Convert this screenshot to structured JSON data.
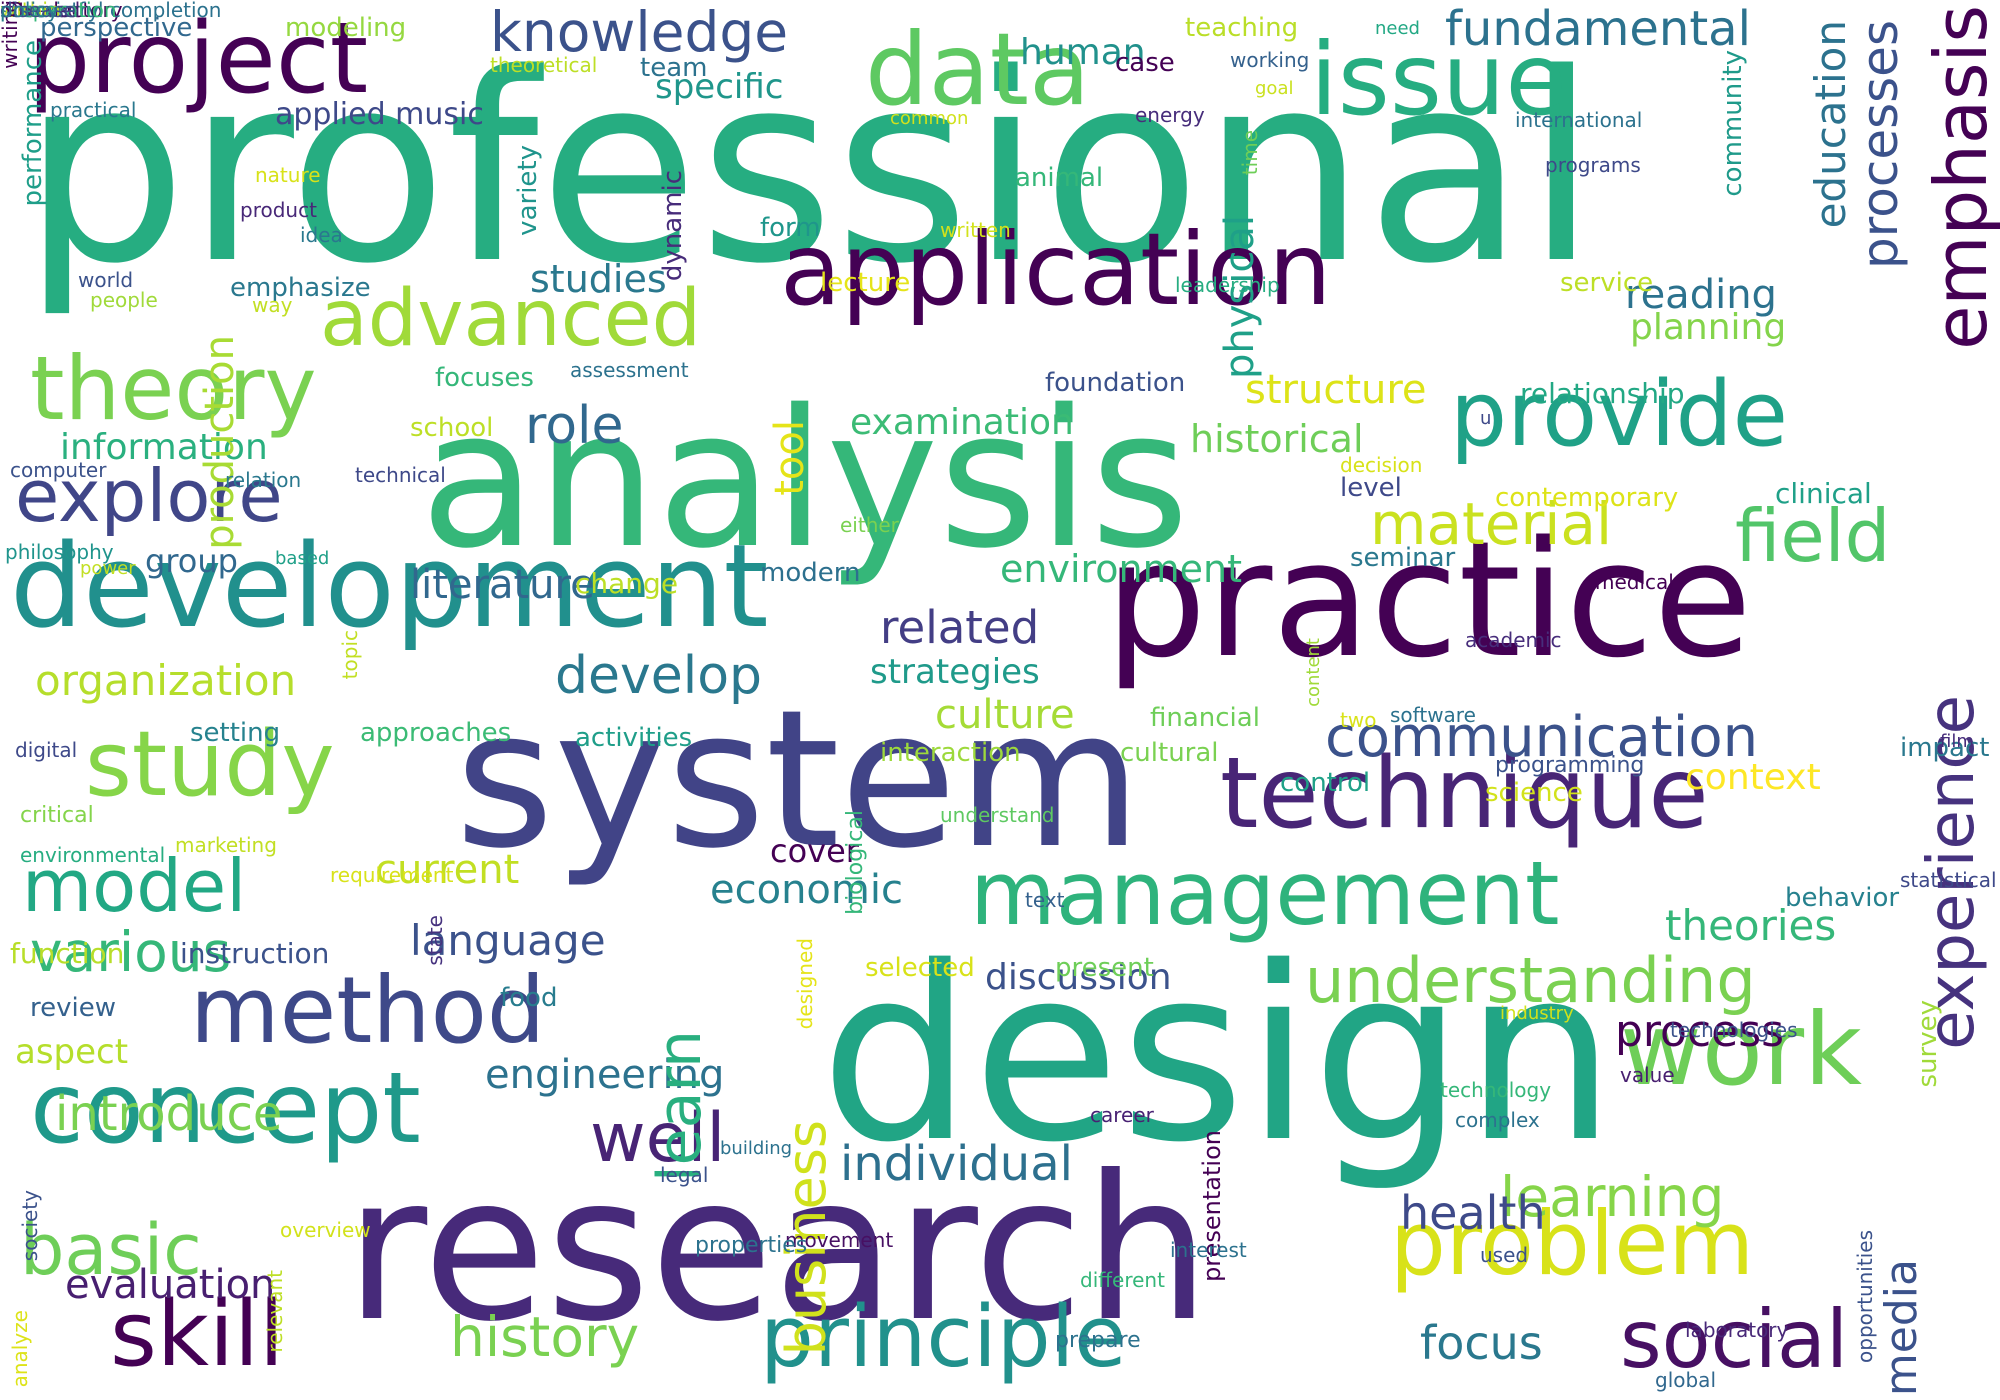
{
  "words": [
    {
      "text": "professional",
      "color": "#26ad81",
      "dir": "h"
    },
    {
      "text": "analysis",
      "color": "#35b779",
      "dir": "h"
    },
    {
      "text": "system",
      "color": "#414487",
      "dir": "h"
    },
    {
      "text": "design",
      "color": "#21a585",
      "dir": "h"
    },
    {
      "text": "research",
      "color": "#472a7a",
      "dir": "h"
    },
    {
      "text": "practice",
      "color": "#440154",
      "dir": "h"
    },
    {
      "text": "application",
      "color": "#440154",
      "dir": "h"
    },
    {
      "text": "development",
      "color": "#21908d",
      "dir": "h"
    },
    {
      "text": "project",
      "color": "#440154",
      "dir": "h"
    },
    {
      "text": "issue",
      "color": "#26ad81",
      "dir": "h"
    },
    {
      "text": "data",
      "color": "#5ec962",
      "dir": "h"
    },
    {
      "text": "knowledge",
      "color": "#3b528b",
      "dir": "h"
    },
    {
      "text": "fundamental",
      "color": "#2c728e",
      "dir": "h"
    },
    {
      "text": "emphasis",
      "color": "#440154",
      "dir": "v"
    },
    {
      "text": "theory",
      "color": "#7ad151",
      "dir": "h"
    },
    {
      "text": "advanced",
      "color": "#a0da39",
      "dir": "h"
    },
    {
      "text": "provide",
      "color": "#1fa187",
      "dir": "h"
    },
    {
      "text": "explore",
      "color": "#404688",
      "dir": "h"
    },
    {
      "text": "technique",
      "color": "#482576",
      "dir": "h"
    },
    {
      "text": "management",
      "color": "#2eb37c",
      "dir": "h"
    },
    {
      "text": "study",
      "color": "#86d549",
      "dir": "h"
    },
    {
      "text": "model",
      "color": "#22a884",
      "dir": "h"
    },
    {
      "text": "method",
      "color": "#3e4989",
      "dir": "h"
    },
    {
      "text": "concept",
      "color": "#1f998a",
      "dir": "h"
    },
    {
      "text": "problem",
      "color": "#d8e219",
      "dir": "h"
    },
    {
      "text": "work",
      "color": "#6ece58",
      "dir": "h"
    },
    {
      "text": "experience",
      "color": "#46327e",
      "dir": "v"
    },
    {
      "text": "skill",
      "color": "#440154",
      "dir": "h"
    },
    {
      "text": "principle",
      "color": "#21918c",
      "dir": "h"
    },
    {
      "text": "social",
      "color": "#471063",
      "dir": "h"
    },
    {
      "text": "basic",
      "color": "#6ece58",
      "dir": "h"
    },
    {
      "text": "history",
      "color": "#7ad151",
      "dir": "h"
    },
    {
      "text": "communication",
      "color": "#3b528b",
      "dir": "h"
    },
    {
      "text": "understanding",
      "color": "#7ad151",
      "dir": "h"
    },
    {
      "text": "field",
      "color": "#52c569",
      "dir": "h"
    },
    {
      "text": "material",
      "color": "#cae11f",
      "dir": "h"
    },
    {
      "text": "processes",
      "color": "#3b528b",
      "dir": "v"
    },
    {
      "text": "education",
      "color": "#2c728e",
      "dir": "v"
    },
    {
      "text": "various",
      "color": "#35b779",
      "dir": "h"
    },
    {
      "text": "organization",
      "color": "#b5de2b",
      "dir": "h"
    },
    {
      "text": "introduce",
      "color": "#7ad151",
      "dir": "h"
    },
    {
      "text": "learning",
      "color": "#86d549",
      "dir": "h"
    },
    {
      "text": "develop",
      "color": "#2a788e",
      "dir": "h"
    },
    {
      "text": "literature",
      "color": "#31688e",
      "dir": "h"
    },
    {
      "text": "role",
      "color": "#31688e",
      "dir": "h"
    },
    {
      "text": "information",
      "color": "#2ab07f",
      "dir": "h"
    },
    {
      "text": "structure",
      "color": "#dde318",
      "dir": "h"
    },
    {
      "text": "historical",
      "color": "#6ece58",
      "dir": "h"
    },
    {
      "text": "environment",
      "color": "#35b779",
      "dir": "h"
    },
    {
      "text": "examination",
      "color": "#3bbb75",
      "dir": "h"
    },
    {
      "text": "related",
      "color": "#433e85",
      "dir": "h"
    },
    {
      "text": "strategies",
      "color": "#1f9a8a",
      "dir": "h"
    },
    {
      "text": "culture",
      "color": "#a5db36",
      "dir": "h"
    },
    {
      "text": "economic",
      "color": "#26818e",
      "dir": "h"
    },
    {
      "text": "language",
      "color": "#3b528b",
      "dir": "h"
    },
    {
      "text": "current",
      "color": "#c2df23",
      "dir": "h"
    },
    {
      "text": "discussion",
      "color": "#3b528b",
      "dir": "h"
    },
    {
      "text": "engineering",
      "color": "#2c728e",
      "dir": "h"
    },
    {
      "text": "individual",
      "color": "#2d708e",
      "dir": "h"
    },
    {
      "text": "well",
      "color": "#482475",
      "dir": "h"
    },
    {
      "text": "health",
      "color": "#3e4a89",
      "dir": "h"
    },
    {
      "text": "focus",
      "color": "#2a788e",
      "dir": "h"
    },
    {
      "text": "evaluation",
      "color": "#481f70",
      "dir": "h"
    },
    {
      "text": "learn",
      "color": "#29af7f",
      "dir": "v"
    },
    {
      "text": "business",
      "color": "#d0e11c",
      "dir": "v"
    },
    {
      "text": "process",
      "color": "#440154",
      "dir": "h"
    },
    {
      "text": "theories",
      "color": "#35b779",
      "dir": "h"
    },
    {
      "text": "media",
      "color": "#3b528b",
      "dir": "v"
    },
    {
      "text": "reading",
      "color": "#2c728e",
      "dir": "h"
    },
    {
      "text": "planning",
      "color": "#84d44b",
      "dir": "h"
    },
    {
      "text": "studies",
      "color": "#2a788e",
      "dir": "h"
    },
    {
      "text": "specific",
      "color": "#1f968b",
      "dir": "h"
    },
    {
      "text": "human",
      "color": "#21918c",
      "dir": "h"
    },
    {
      "text": "physical",
      "color": "#1fa088",
      "dir": "v"
    },
    {
      "text": "production",
      "color": "#a8db34",
      "dir": "v"
    },
    {
      "text": "applied music",
      "color": "#3e4989",
      "dir": "h"
    },
    {
      "text": "perspective",
      "color": "#31688e",
      "dir": "h"
    },
    {
      "text": "modeling",
      "color": "#95d840",
      "dir": "h"
    },
    {
      "text": "teaching",
      "color": "#bade28",
      "dir": "h"
    },
    {
      "text": "context",
      "color": "#fde725",
      "dir": "h"
    },
    {
      "text": "tool",
      "color": "#e5e419",
      "dir": "v"
    },
    {
      "text": "group",
      "color": "#31688e",
      "dir": "h"
    },
    {
      "text": "activities",
      "color": "#1f9e89",
      "dir": "h"
    },
    {
      "text": "setting",
      "color": "#26828e",
      "dir": "h"
    },
    {
      "text": "approaches",
      "color": "#3bbb75",
      "dir": "h"
    },
    {
      "text": "interaction",
      "color": "#9dd93b",
      "dir": "h"
    },
    {
      "text": "cultural",
      "color": "#7ad151",
      "dir": "h"
    },
    {
      "text": "financial",
      "color": "#6ece58",
      "dir": "h"
    },
    {
      "text": "control",
      "color": "#1fa187",
      "dir": "h"
    },
    {
      "text": "science",
      "color": "#d2e21b",
      "dir": "h"
    },
    {
      "text": "cover",
      "color": "#440154",
      "dir": "h"
    },
    {
      "text": "instruction",
      "color": "#3b528b",
      "dir": "h"
    },
    {
      "text": "function",
      "color": "#b8de29",
      "dir": "h"
    },
    {
      "text": "aspect",
      "color": "#b5de2b",
      "dir": "h"
    },
    {
      "text": "review",
      "color": "#34618d",
      "dir": "h"
    },
    {
      "text": "food",
      "color": "#287c8e",
      "dir": "h"
    },
    {
      "text": "selected",
      "color": "#d8e219",
      "dir": "h"
    },
    {
      "text": "present",
      "color": "#6ece58",
      "dir": "h"
    },
    {
      "text": "survey",
      "color": "#a0da39",
      "dir": "v"
    },
    {
      "text": "behavior",
      "color": "#26818e",
      "dir": "h"
    },
    {
      "text": "impact",
      "color": "#2a788e",
      "dir": "h"
    },
    {
      "text": "clinical",
      "color": "#1fa088",
      "dir": "h"
    },
    {
      "text": "contemporary",
      "color": "#dde318",
      "dir": "h"
    },
    {
      "text": "level",
      "color": "#3e4989",
      "dir": "h"
    },
    {
      "text": "seminar",
      "color": "#2a788e",
      "dir": "h"
    },
    {
      "text": "modern",
      "color": "#2d708e",
      "dir": "h"
    },
    {
      "text": "foundation",
      "color": "#3b528b",
      "dir": "h"
    },
    {
      "text": "relationship",
      "color": "#22a884",
      "dir": "h"
    },
    {
      "text": "focuses",
      "color": "#35b779",
      "dir": "h"
    },
    {
      "text": "school",
      "color": "#bddf26",
      "dir": "h"
    },
    {
      "text": "emphasize",
      "color": "#2a788e",
      "dir": "h"
    },
    {
      "text": "variety",
      "color": "#1f948c",
      "dir": "v"
    },
    {
      "text": "dynamic",
      "color": "#472c7a",
      "dir": "v"
    },
    {
      "text": "form",
      "color": "#1f968b",
      "dir": "h"
    },
    {
      "text": "animal",
      "color": "#35b779",
      "dir": "h"
    },
    {
      "text": "case",
      "color": "#440154",
      "dir": "h"
    },
    {
      "text": "team",
      "color": "#2c728e",
      "dir": "h"
    },
    {
      "text": "community",
      "color": "#1f9a8a",
      "dir": "v"
    },
    {
      "text": "performance",
      "color": "#1f9e89",
      "dir": "v"
    },
    {
      "text": "lecture",
      "color": "#e5e419",
      "dir": "h"
    },
    {
      "text": "service",
      "color": "#bddf26",
      "dir": "h"
    },
    {
      "text": "written",
      "color": "#d2e21b",
      "dir": "h"
    },
    {
      "text": "programs",
      "color": "#3e4989",
      "dir": "h"
    },
    {
      "text": "international",
      "color": "#2c728e",
      "dir": "h"
    },
    {
      "text": "energy",
      "color": "#472d7b",
      "dir": "h"
    },
    {
      "text": "common",
      "color": "#d0e11c",
      "dir": "h"
    },
    {
      "text": "goal",
      "color": "#cae11f",
      "dir": "h"
    },
    {
      "text": "working",
      "color": "#34618d",
      "dir": "h"
    },
    {
      "text": "need",
      "color": "#22a884",
      "dir": "h"
    },
    {
      "text": "theoretical",
      "color": "#bddf26",
      "dir": "h"
    },
    {
      "text": "practical",
      "color": "#2a788e",
      "dir": "h"
    },
    {
      "text": "nature",
      "color": "#d8e219",
      "dir": "h"
    },
    {
      "text": "product",
      "color": "#482878",
      "dir": "h"
    },
    {
      "text": "idea",
      "color": "#2a788e",
      "dir": "h"
    },
    {
      "text": "world",
      "color": "#3b528b",
      "dir": "h"
    },
    {
      "text": "people",
      "color": "#a0da39",
      "dir": "h"
    },
    {
      "text": "way",
      "color": "#c2df23",
      "dir": "h"
    },
    {
      "text": "leadership",
      "color": "#27ad81",
      "dir": "h"
    },
    {
      "text": "time",
      "color": "#6ece58",
      "dir": "v"
    },
    {
      "text": "assessment",
      "color": "#2c728e",
      "dir": "h"
    },
    {
      "text": "computer",
      "color": "#3b528b",
      "dir": "h"
    },
    {
      "text": "relation",
      "color": "#2a788e",
      "dir": "h"
    },
    {
      "text": "technical",
      "color": "#3e4989",
      "dir": "h"
    },
    {
      "text": "philosophy",
      "color": "#1f948c",
      "dir": "h"
    },
    {
      "text": "power",
      "color": "#c2df23",
      "dir": "h"
    },
    {
      "text": "based",
      "color": "#1fa088",
      "dir": "h"
    },
    {
      "text": "either",
      "color": "#7ad151",
      "dir": "h"
    },
    {
      "text": "decision",
      "color": "#d8e219",
      "dir": "h"
    },
    {
      "text": "u",
      "color": "#3e4989",
      "dir": "h"
    },
    {
      "text": "medical",
      "color": "#440154",
      "dir": "h"
    },
    {
      "text": "academic",
      "color": "#472d7b",
      "dir": "h"
    },
    {
      "text": "content",
      "color": "#a0da39",
      "dir": "v"
    },
    {
      "text": "topic",
      "color": "#c2df23",
      "dir": "v"
    },
    {
      "text": "software",
      "color": "#2c728e",
      "dir": "h"
    },
    {
      "text": "two",
      "color": "#d8e219",
      "dir": "h"
    },
    {
      "text": "film",
      "color": "#472d7b",
      "dir": "h"
    },
    {
      "text": "programming",
      "color": "#3b528b",
      "dir": "h"
    },
    {
      "text": "digital",
      "color": "#3e4989",
      "dir": "h"
    },
    {
      "text": "critical",
      "color": "#84d44b",
      "dir": "h"
    },
    {
      "text": "environmental",
      "color": "#27ad81",
      "dir": "h"
    },
    {
      "text": "marketing",
      "color": "#c2df23",
      "dir": "h"
    },
    {
      "text": "requirement",
      "color": "#d8e219",
      "dir": "h"
    },
    {
      "text": "state",
      "color": "#46327e",
      "dir": "v"
    },
    {
      "text": "biological",
      "color": "#35b779",
      "dir": "v"
    },
    {
      "text": "understand",
      "color": "#5ec962",
      "dir": "h"
    },
    {
      "text": "statistical",
      "color": "#3e4989",
      "dir": "h"
    },
    {
      "text": "technologies",
      "color": "#3b528b",
      "dir": "h"
    },
    {
      "text": "value",
      "color": "#481f70",
      "dir": "h"
    },
    {
      "text": "designed",
      "color": "#e5e419",
      "dir": "v"
    },
    {
      "text": "society",
      "color": "#3b528b",
      "dir": "v"
    },
    {
      "text": "building",
      "color": "#2c728e",
      "dir": "h"
    },
    {
      "text": "movement",
      "color": "#471063",
      "dir": "h"
    },
    {
      "text": "opportunities",
      "color": "#3b528b",
      "dir": "v"
    },
    {
      "text": "properties",
      "color": "#2c728e",
      "dir": "h"
    },
    {
      "text": "text",
      "color": "#34618d",
      "dir": "h"
    },
    {
      "text": "industry",
      "color": "#d0e11c",
      "dir": "h"
    },
    {
      "text": "technology",
      "color": "#35b779",
      "dir": "h"
    },
    {
      "text": "complex",
      "color": "#2c728e",
      "dir": "h"
    },
    {
      "text": "change",
      "color": "#bddf26",
      "dir": "h"
    },
    {
      "text": "prepare",
      "color": "#2c728e",
      "dir": "h"
    },
    {
      "text": "relevant",
      "color": "#bddf26",
      "dir": "v"
    },
    {
      "text": "career",
      "color": "#482173",
      "dir": "h"
    },
    {
      "text": "presentation",
      "color": "#440154",
      "dir": "v"
    },
    {
      "text": "analyze",
      "color": "#dde318",
      "dir": "v"
    },
    {
      "text": "laboratory",
      "color": "#482878",
      "dir": "h"
    },
    {
      "text": "global",
      "color": "#31688e",
      "dir": "h"
    },
    {
      "text": "overview",
      "color": "#d2e21b",
      "dir": "h"
    },
    {
      "text": "legal",
      "color": "#3b528b",
      "dir": "h"
    },
    {
      "text": "interest",
      "color": "#2c728e",
      "dir": "h"
    },
    {
      "text": "different",
      "color": "#35b779",
      "dir": "h"
    },
    {
      "text": "used",
      "color": "#3b528b",
      "dir": "h"
    },
    {
      "text": "chemistry",
      "color": "#2c728e",
      "dir": "h"
    },
    {
      "text": "introductory",
      "color": "#440154",
      "dir": "h"
    },
    {
      "text": "successful completion",
      "color": "#2c728e",
      "dir": "h"
    },
    {
      "text": "covered",
      "color": "#481f70",
      "dir": "h"
    },
    {
      "text": "within",
      "color": "#c2df23",
      "dir": "h"
    },
    {
      "text": "writing",
      "color": "#440154",
      "dir": "v"
    },
    {
      "text": "preparation",
      "color": "#35b779",
      "dir": "h"
    },
    {
      "text": "disease",
      "color": "#3e4989",
      "dir": "h"
    },
    {
      "text": "policy",
      "color": "#2a788e",
      "dir": "h"
    }
  ]
}
